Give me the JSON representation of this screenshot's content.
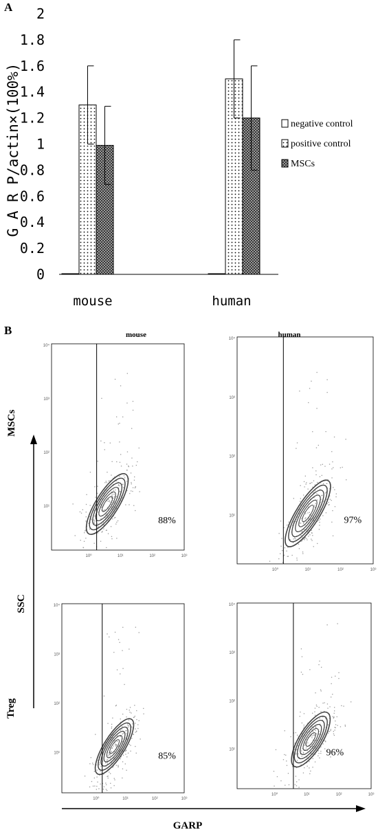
{
  "panel_a_label": "A",
  "panel_b_label": "B",
  "chart_data": [
    {
      "type": "bar",
      "ylabel": "G A R P/actin×(100%)",
      "ylim": [
        0,
        2
      ],
      "yticks": [
        "0",
        "0.2",
        "0.4",
        "0.6",
        "0.8",
        "1",
        "1.2",
        "1.4",
        "1.6",
        "1.8",
        "2"
      ],
      "categories": [
        "mouse",
        "human"
      ],
      "series": [
        {
          "name": "negative control",
          "values": [
            0,
            0
          ],
          "errors": [
            0,
            0
          ],
          "pattern": "white"
        },
        {
          "name": "positive control",
          "values": [
            1.3,
            1.5
          ],
          "errors": [
            0.3,
            0.3
          ],
          "pattern": "dots"
        },
        {
          "name": "MSCs",
          "values": [
            0.99,
            1.2
          ],
          "errors": [
            0.3,
            0.4
          ],
          "pattern": "crosshatch"
        }
      ],
      "legend_position": "right"
    },
    {
      "type": "scatter",
      "subtype": "flow-cytometry-contour",
      "column_titles": [
        "mouse",
        "human"
      ],
      "row_labels": [
        "MSCs",
        "Treg"
      ],
      "x_axis_label": "GARP",
      "y_axis_label": "SSC",
      "axis_tick_labels": [
        "10⁰",
        "10¹",
        "10²",
        "10³",
        "10⁴"
      ],
      "panels": [
        {
          "row": "MSCs",
          "column": "mouse",
          "percent_positive": "88%"
        },
        {
          "row": "MSCs",
          "column": "human",
          "percent_positive": "97%"
        },
        {
          "row": "Treg",
          "column": "mouse",
          "percent_positive": "85%"
        },
        {
          "row": "Treg",
          "column": "human",
          "percent_positive": "96%"
        }
      ]
    }
  ]
}
